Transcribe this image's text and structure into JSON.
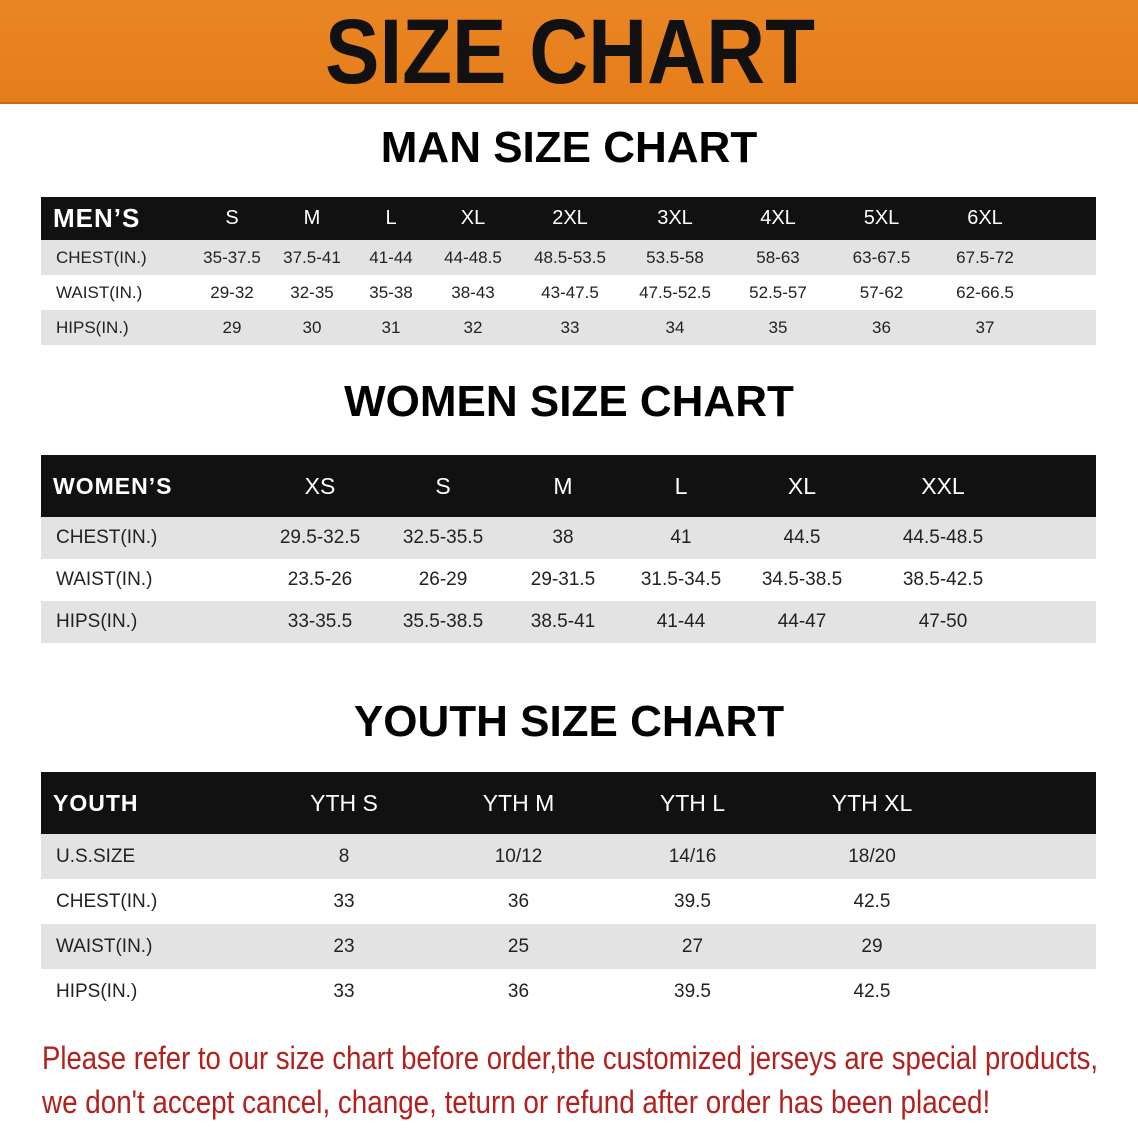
{
  "banner": {
    "title": "SIZE CHART",
    "color": "#e8821f"
  },
  "men": {
    "title": "MAN SIZE CHART",
    "header": [
      "MEN’S",
      "S",
      "M",
      "L",
      "XL",
      "2XL",
      "3XL",
      "4XL",
      "5XL",
      "6XL"
    ],
    "rows": [
      [
        "CHEST(IN.)",
        "35-37.5",
        "37.5-41",
        "41-44",
        "44-48.5",
        "48.5-53.5",
        "53.5-58",
        "58-63",
        "63-67.5",
        "67.5-72"
      ],
      [
        "WAIST(IN.)",
        "29-32",
        "32-35",
        "35-38",
        "38-43",
        "43-47.5",
        "47.5-52.5",
        "52.5-57",
        "57-62",
        "62-66.5"
      ],
      [
        "HIPS(IN.)",
        "29",
        "30",
        "31",
        "32",
        "33",
        "34",
        "35",
        "36",
        "37"
      ]
    ]
  },
  "women": {
    "title": "WOMEN SIZE CHART",
    "header": [
      "WOMEN’S",
      "XS",
      "S",
      "M",
      "L",
      "XL",
      "XXL"
    ],
    "rows": [
      [
        "CHEST(IN.)",
        "29.5-32.5",
        "32.5-35.5",
        "38",
        "41",
        "44.5",
        "44.5-48.5"
      ],
      [
        "WAIST(IN.)",
        "23.5-26",
        "26-29",
        "29-31.5",
        "31.5-34.5",
        "34.5-38.5",
        "38.5-42.5"
      ],
      [
        "HIPS(IN.)",
        "33-35.5",
        "35.5-38.5",
        "38.5-41",
        "41-44",
        "44-47",
        "47-50"
      ]
    ]
  },
  "youth": {
    "title": "YOUTH SIZE CHART",
    "header": [
      "YOUTH",
      "YTH S",
      "YTH M",
      "YTH L",
      "YTH XL"
    ],
    "rows": [
      [
        "U.S.SIZE",
        "8",
        "10/12",
        "14/16",
        "18/20"
      ],
      [
        "CHEST(IN.)",
        "33",
        "36",
        "39.5",
        "42.5"
      ],
      [
        "WAIST(IN.)",
        "23",
        "25",
        "27",
        "29"
      ],
      [
        "HIPS(IN.)",
        "33",
        "36",
        "39.5",
        "42.5"
      ]
    ]
  },
  "note": {
    "line1": "Please refer to our size chart before order,the customized jerseys are special products,",
    "line2": "we don't accept cancel, change, teturn or refund after order has been placed!",
    "color": "#b3201e"
  }
}
